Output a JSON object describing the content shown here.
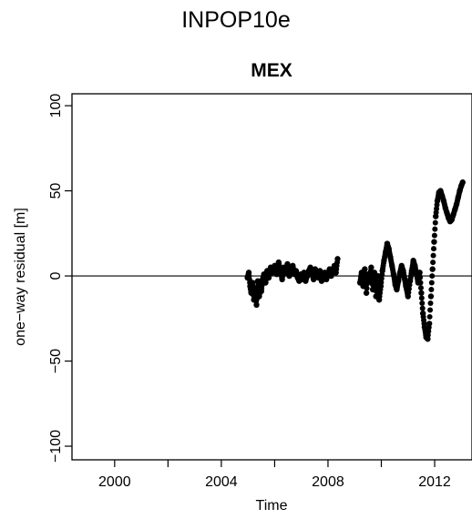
{
  "suptitle": "INPOP10e",
  "chart_data": {
    "type": "scatter",
    "title": "MEX",
    "xlabel": "Time",
    "ylabel": "one−way residual [m]",
    "xlim": [
      1998.4,
      2013.4
    ],
    "ylim": [
      -108,
      107
    ],
    "xticks": [
      2000,
      2002,
      2004,
      2006,
      2008,
      2010,
      2012
    ],
    "xtick_labels": [
      "2000",
      "",
      "2004",
      "",
      "2008",
      "",
      "2012"
    ],
    "yticks": [
      -100,
      -50,
      0,
      50,
      100
    ],
    "ytick_labels": [
      "−100",
      "−50",
      "0",
      "50",
      "100"
    ],
    "reference_line": 0,
    "color": "#000000",
    "grid": false,
    "series": [
      {
        "x": [
          2004.98,
          2005.03,
          2005.08,
          2005.12,
          2005.18,
          2005.22,
          2005.27,
          2005.32,
          2005.37,
          2005.42,
          2005.46,
          2005.5,
          2005.55,
          2005.6,
          2005.66,
          2005.72,
          2005.78,
          2005.85,
          2005.92,
          2006.0,
          2006.08,
          2006.15,
          2006.22,
          2006.28,
          2006.35,
          2006.42,
          2006.48,
          2006.55,
          2006.62,
          2006.68,
          2006.74,
          2006.8,
          2006.86,
          2006.92,
          2006.98,
          2007.04,
          2007.1,
          2007.16,
          2007.22,
          2007.28,
          2007.34,
          2007.4,
          2007.46,
          2007.52,
          2007.58,
          2007.64,
          2007.7,
          2007.76,
          2007.82,
          2007.88,
          2007.94,
          2008.0,
          2008.06,
          2008.12,
          2008.18,
          2008.24,
          2008.3,
          2008.36,
          2009.2,
          2009.26,
          2009.32,
          2009.38,
          2009.44,
          2009.5,
          2009.56,
          2009.62,
          2009.68,
          2009.74,
          2009.8,
          2009.86,
          2009.92,
          2009.98,
          2010.04,
          2010.1,
          2010.16,
          2010.22,
          2010.28,
          2010.34,
          2010.4,
          2010.46,
          2010.52,
          2010.58,
          2010.64,
          2010.7,
          2010.76,
          2010.82,
          2010.88,
          2010.92,
          2011.0,
          2011.08,
          2011.14,
          2011.2,
          2011.26,
          2011.32,
          2011.38,
          2011.44,
          2011.5,
          2011.56,
          2011.62,
          2011.68,
          2011.74,
          2011.8,
          2011.86,
          2011.92,
          2011.98,
          2012.04,
          2012.1,
          2012.16,
          2012.22,
          2012.28,
          2012.34,
          2012.4,
          2012.46,
          2012.52,
          2012.58,
          2012.64,
          2012.7,
          2012.76,
          2012.82,
          2012.88,
          2012.94,
          2013.0,
          2013.05
        ],
        "y": [
          -1,
          2,
          -6,
          -10,
          -4,
          -14,
          -8,
          -17,
          -3,
          -12,
          -6,
          -9,
          -2,
          1,
          -4,
          3,
          -1,
          5,
          2,
          6,
          1,
          8,
          3,
          -2,
          5,
          2,
          7,
          0,
          4,
          6,
          1,
          3,
          -1,
          -3,
          1,
          -2,
          2,
          -3,
          0,
          3,
          5,
          1,
          -2,
          4,
          0,
          -1,
          3,
          -3,
          0,
          2,
          -2,
          1,
          4,
          0,
          3,
          6,
          2,
          10,
          -4,
          2,
          -6,
          4,
          -10,
          1,
          -3,
          5,
          -8,
          2,
          -12,
          0,
          -14,
          -6,
          3,
          9,
          14,
          19,
          16,
          11,
          6,
          1,
          -5,
          -8,
          -3,
          2,
          6,
          3,
          -2,
          -6,
          -12,
          -3,
          3,
          9,
          6,
          1,
          -4,
          2,
          -10,
          -22,
          -30,
          -36,
          -37,
          -28,
          -12,
          4,
          20,
          35,
          44,
          49,
          50,
          47,
          44,
          40,
          37,
          34,
          32,
          33,
          36,
          39,
          42,
          46,
          50,
          53,
          55
        ]
      }
    ]
  }
}
